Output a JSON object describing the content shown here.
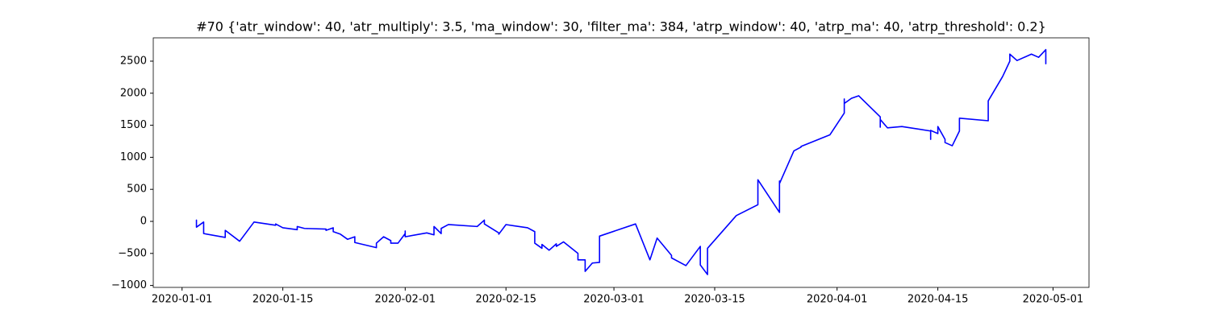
{
  "chart_data": {
    "type": "line",
    "title": "#70 {'atr_window': 40, 'atr_multiply': 3.5, 'ma_window': 30, 'filter_ma': 384, 'atrp_window': 40, 'atrp_ma': 40, 'atrp_threshold': 0.2}",
    "x": [
      "2020-01-03",
      "2020-01-03",
      "2020-01-03",
      "2020-01-03",
      "2020-01-04",
      "2020-01-04",
      "2020-01-07",
      "2020-01-07",
      "2020-01-09",
      "2020-01-11",
      "2020-01-14",
      "2020-01-14",
      "2020-01-15",
      "2020-01-17",
      "2020-01-17",
      "2020-01-18",
      "2020-01-21",
      "2020-01-21",
      "2020-01-22",
      "2020-01-22",
      "2020-01-23",
      "2020-01-24",
      "2020-01-25",
      "2020-01-25",
      "2020-01-28",
      "2020-01-28",
      "2020-01-29",
      "2020-01-30",
      "2020-01-30",
      "2020-01-31",
      "2020-02-01",
      "2020-02-01",
      "2020-02-01",
      "2020-02-04",
      "2020-02-05",
      "2020-02-05",
      "2020-02-06",
      "2020-02-06",
      "2020-02-07",
      "2020-02-11",
      "2020-02-12",
      "2020-02-12",
      "2020-02-14",
      "2020-02-14",
      "2020-02-15",
      "2020-02-18",
      "2020-02-19",
      "2020-02-19",
      "2020-02-19",
      "2020-02-20",
      "2020-02-20",
      "2020-02-21",
      "2020-02-22",
      "2020-02-22",
      "2020-02-23",
      "2020-02-25",
      "2020-02-25",
      "2020-02-26",
      "2020-02-26",
      "2020-02-26",
      "2020-02-26",
      "2020-02-27",
      "2020-02-28",
      "2020-02-28",
      "2020-03-04",
      "2020-03-06",
      "2020-03-07",
      "2020-03-09",
      "2020-03-09",
      "2020-03-11",
      "2020-03-13",
      "2020-03-13",
      "2020-03-14",
      "2020-03-14",
      "2020-03-18",
      "2020-03-21",
      "2020-03-21",
      "2020-03-24",
      "2020-03-24",
      "2020-03-24",
      "2020-03-26",
      "2020-03-27",
      "2020-03-27",
      "2020-03-31",
      "2020-04-02",
      "2020-04-02",
      "2020-04-02",
      "2020-04-03",
      "2020-04-04",
      "2020-04-07",
      "2020-04-07",
      "2020-04-07",
      "2020-04-08",
      "2020-04-10",
      "2020-04-14",
      "2020-04-14",
      "2020-04-14",
      "2020-04-15",
      "2020-04-15",
      "2020-04-16",
      "2020-04-16",
      "2020-04-17",
      "2020-04-18",
      "2020-04-18",
      "2020-04-22",
      "2020-04-22",
      "2020-04-24",
      "2020-04-25",
      "2020-04-25",
      "2020-04-26",
      "2020-04-28",
      "2020-04-29",
      "2020-04-30",
      "2020-04-30",
      "2020-04-30",
      "2020-04-30"
    ],
    "series": [
      {
        "color": "#0000ff",
        "values": [
          10,
          -10,
          20,
          -90,
          -10,
          -190,
          -250,
          -140,
          -310,
          -10,
          -60,
          -40,
          -100,
          -130,
          -80,
          -110,
          -120,
          -140,
          -100,
          -160,
          -200,
          -280,
          -240,
          -330,
          -410,
          -340,
          -240,
          -300,
          -340,
          -340,
          -190,
          -150,
          -240,
          -180,
          -210,
          -80,
          -190,
          -110,
          -50,
          -80,
          20,
          -40,
          -180,
          -200,
          -50,
          -100,
          -160,
          -250,
          -340,
          -420,
          -360,
          -450,
          -350,
          -390,
          -320,
          -500,
          -600,
          -600,
          -730,
          -690,
          -780,
          -650,
          -640,
          -230,
          -40,
          -600,
          -260,
          -530,
          -570,
          -690,
          -390,
          -680,
          -830,
          -420,
          90,
          260,
          650,
          140,
          630,
          590,
          1100,
          1160,
          1170,
          1350,
          1690,
          1910,
          1840,
          1920,
          1960,
          1630,
          1470,
          1590,
          1460,
          1480,
          1410,
          1280,
          1420,
          1370,
          1480,
          1280,
          1230,
          1180,
          1410,
          1610,
          1570,
          1880,
          2260,
          2500,
          2610,
          2510,
          2610,
          2560,
          2680,
          2460,
          2530,
          2500
        ]
      }
    ],
    "xlim": [
      "2019-12-28",
      "2020-05-06"
    ],
    "xticks": [
      "2020-01-01",
      "2020-01-15",
      "2020-02-01",
      "2020-02-15",
      "2020-03-01",
      "2020-03-15",
      "2020-04-01",
      "2020-04-15",
      "2020-05-01"
    ],
    "ylim": [
      -1030,
      2864
    ],
    "yticks": [
      {
        "value": -1000,
        "label": "−1000"
      },
      {
        "value": -500,
        "label": "−500"
      },
      0,
      500,
      1000,
      1500,
      2000,
      2500
    ],
    "grid": false
  }
}
